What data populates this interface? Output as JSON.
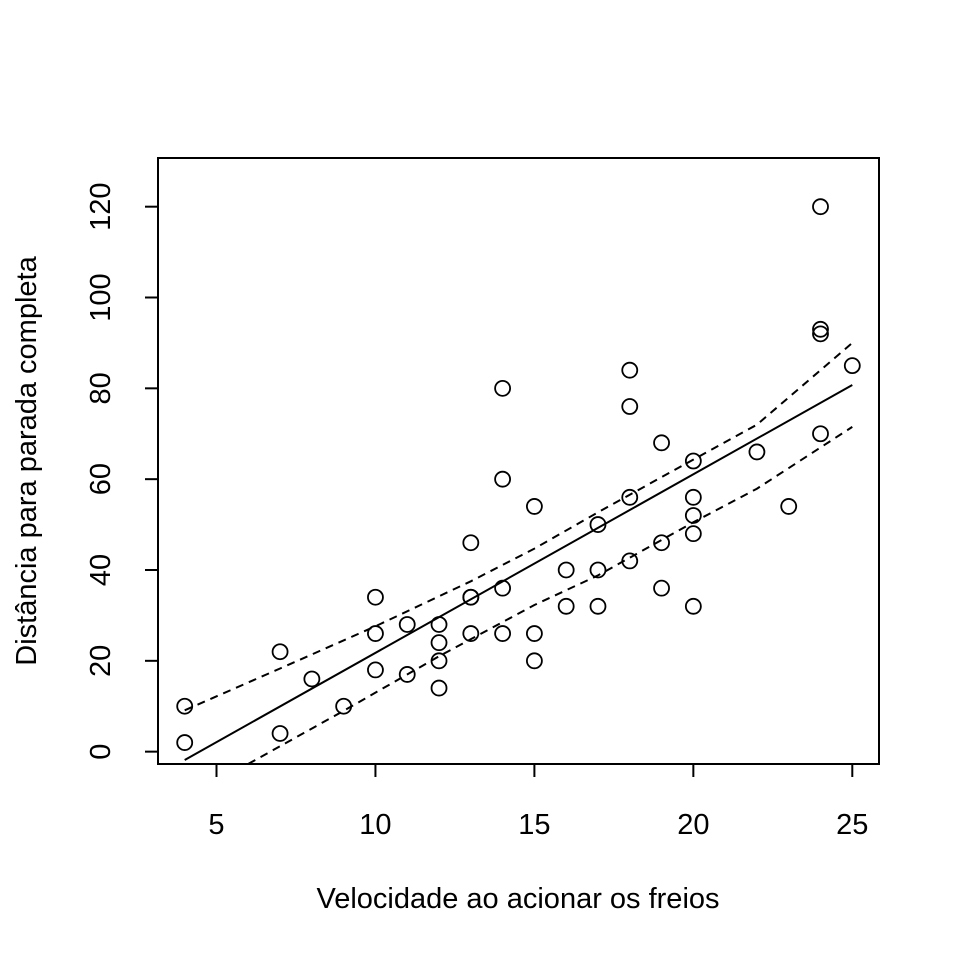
{
  "chart_data": {
    "type": "scatter",
    "title": "",
    "xlabel": "Velocidade ao acionar os freios",
    "ylabel": "Distância para parada completa",
    "xlim": [
      3.16,
      25.84
    ],
    "ylim": [
      -2.72,
      130.72
    ],
    "x_ticks": [
      5,
      10,
      15,
      20,
      25
    ],
    "y_ticks": [
      0,
      20,
      40,
      60,
      80,
      100,
      120
    ],
    "x_tick_labels": [
      "5",
      "10",
      "15",
      "20",
      "25"
    ],
    "y_tick_labels": [
      "0",
      "20",
      "40",
      "60",
      "80",
      "100",
      "120"
    ],
    "grid": false,
    "legend": "none",
    "points": [
      [
        4,
        2
      ],
      [
        4,
        10
      ],
      [
        7,
        4
      ],
      [
        7,
        22
      ],
      [
        8,
        16
      ],
      [
        9,
        10
      ],
      [
        10,
        18
      ],
      [
        10,
        26
      ],
      [
        10,
        34
      ],
      [
        11,
        17
      ],
      [
        11,
        28
      ],
      [
        12,
        14
      ],
      [
        12,
        20
      ],
      [
        12,
        24
      ],
      [
        12,
        28
      ],
      [
        13,
        26
      ],
      [
        13,
        34
      ],
      [
        13,
        34
      ],
      [
        13,
        46
      ],
      [
        14,
        26
      ],
      [
        14,
        36
      ],
      [
        14,
        60
      ],
      [
        14,
        80
      ],
      [
        15,
        20
      ],
      [
        15,
        26
      ],
      [
        15,
        54
      ],
      [
        16,
        32
      ],
      [
        16,
        40
      ],
      [
        17,
        32
      ],
      [
        17,
        40
      ],
      [
        17,
        50
      ],
      [
        18,
        42
      ],
      [
        18,
        56
      ],
      [
        18,
        76
      ],
      [
        18,
        84
      ],
      [
        19,
        36
      ],
      [
        19,
        46
      ],
      [
        19,
        68
      ],
      [
        20,
        32
      ],
      [
        20,
        48
      ],
      [
        20,
        52
      ],
      [
        20,
        56
      ],
      [
        20,
        64
      ],
      [
        22,
        66
      ],
      [
        23,
        54
      ],
      [
        24,
        70
      ],
      [
        24,
        92
      ],
      [
        24,
        93
      ],
      [
        24,
        120
      ],
      [
        25,
        85
      ]
    ],
    "fit_line": {
      "x": [
        4,
        25
      ],
      "y": [
        -1.85,
        80.73
      ],
      "style": "solid"
    },
    "confidence_upper": {
      "style": "dashed",
      "x": [
        4,
        7,
        10,
        13,
        15,
        17,
        20,
        22,
        25
      ],
      "y": [
        9.1,
        18.3,
        27.6,
        37.5,
        44.7,
        52.7,
        64.3,
        72.0,
        90.0
      ]
    },
    "confidence_lower": {
      "style": "dashed",
      "x": [
        6,
        9,
        12,
        15,
        17,
        20,
        22,
        25
      ],
      "y": [
        -2.7,
        9.0,
        21.0,
        32.3,
        38.8,
        50.5,
        57.9,
        71.5
      ]
    }
  }
}
